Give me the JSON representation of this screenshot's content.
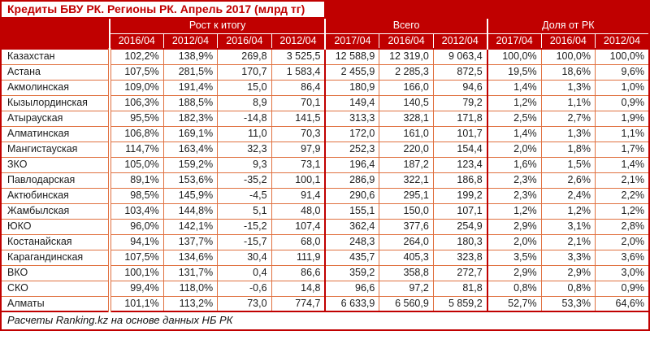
{
  "title": "Кредиты БВУ РК. Регионы РК. Апрель 2017 (млрд тг)",
  "footer": "Расчеты Ranking.kz на основе данных НБ РК",
  "colors": {
    "header_bg": "#C00000",
    "header_text": "#FFFFFF",
    "title_text": "#C00000",
    "cell_border": "#E07140",
    "strong_border": "#C00000"
  },
  "chart_data": {
    "type": "table",
    "title": "Кредиты БВУ РК. Регионы РК. Апрель 2017 (млрд тг)",
    "groups": [
      {
        "label": "Рост к итогу",
        "cols": 4
      },
      {
        "label": "Всего",
        "cols": 3
      },
      {
        "label": "Доля от РК",
        "cols": 3
      }
    ],
    "sub_headers": [
      "2016/04",
      "2012/04",
      "2016/04",
      "2012/04",
      "2017/04",
      "2016/04",
      "2012/04",
      "2017/04",
      "2016/04",
      "2012/04"
    ],
    "rows": [
      {
        "region": "Казахстан",
        "values": [
          "102,2%",
          "138,9%",
          "269,8",
          "3 525,5",
          "12 588,9",
          "12 319,0",
          "9 063,4",
          "100,0%",
          "100,0%",
          "100,0%"
        ]
      },
      {
        "region": "Астана",
        "values": [
          "107,5%",
          "281,5%",
          "170,7",
          "1 583,4",
          "2 455,9",
          "2 285,3",
          "872,5",
          "19,5%",
          "18,6%",
          "9,6%"
        ]
      },
      {
        "region": "Акмолинская",
        "values": [
          "109,0%",
          "191,4%",
          "15,0",
          "86,4",
          "180,9",
          "166,0",
          "94,6",
          "1,4%",
          "1,3%",
          "1,0%"
        ]
      },
      {
        "region": "Кызылординская",
        "values": [
          "106,3%",
          "188,5%",
          "8,9",
          "70,1",
          "149,4",
          "140,5",
          "79,2",
          "1,2%",
          "1,1%",
          "0,9%"
        ]
      },
      {
        "region": "Атырауская",
        "values": [
          "95,5%",
          "182,3%",
          "-14,8",
          "141,5",
          "313,3",
          "328,1",
          "171,8",
          "2,5%",
          "2,7%",
          "1,9%"
        ]
      },
      {
        "region": "Алматинская",
        "values": [
          "106,8%",
          "169,1%",
          "11,0",
          "70,3",
          "172,0",
          "161,0",
          "101,7",
          "1,4%",
          "1,3%",
          "1,1%"
        ]
      },
      {
        "region": "Мангистауская",
        "values": [
          "114,7%",
          "163,4%",
          "32,3",
          "97,9",
          "252,3",
          "220,0",
          "154,4",
          "2,0%",
          "1,8%",
          "1,7%"
        ]
      },
      {
        "region": "ЗКО",
        "values": [
          "105,0%",
          "159,2%",
          "9,3",
          "73,1",
          "196,4",
          "187,2",
          "123,4",
          "1,6%",
          "1,5%",
          "1,4%"
        ]
      },
      {
        "region": "Павлодарская",
        "values": [
          "89,1%",
          "153,6%",
          "-35,2",
          "100,1",
          "286,9",
          "322,1",
          "186,8",
          "2,3%",
          "2,6%",
          "2,1%"
        ]
      },
      {
        "region": "Актюбинская",
        "values": [
          "98,5%",
          "145,9%",
          "-4,5",
          "91,4",
          "290,6",
          "295,1",
          "199,2",
          "2,3%",
          "2,4%",
          "2,2%"
        ]
      },
      {
        "region": "Жамбылская",
        "values": [
          "103,4%",
          "144,8%",
          "5,1",
          "48,0",
          "155,1",
          "150,0",
          "107,1",
          "1,2%",
          "1,2%",
          "1,2%"
        ]
      },
      {
        "region": "ЮКО",
        "values": [
          "96,0%",
          "142,1%",
          "-15,2",
          "107,4",
          "362,4",
          "377,6",
          "254,9",
          "2,9%",
          "3,1%",
          "2,8%"
        ]
      },
      {
        "region": "Костанайская",
        "values": [
          "94,1%",
          "137,7%",
          "-15,7",
          "68,0",
          "248,3",
          "264,0",
          "180,3",
          "2,0%",
          "2,1%",
          "2,0%"
        ]
      },
      {
        "region": "Карагандинская",
        "values": [
          "107,5%",
          "134,6%",
          "30,4",
          "111,9",
          "435,7",
          "405,3",
          "323,8",
          "3,5%",
          "3,3%",
          "3,6%"
        ]
      },
      {
        "region": "ВКО",
        "values": [
          "100,1%",
          "131,7%",
          "0,4",
          "86,6",
          "359,2",
          "358,8",
          "272,7",
          "2,9%",
          "2,9%",
          "3,0%"
        ]
      },
      {
        "region": "СКО",
        "values": [
          "99,4%",
          "118,0%",
          "-0,6",
          "14,8",
          "96,6",
          "97,2",
          "81,8",
          "0,8%",
          "0,8%",
          "0,9%"
        ]
      },
      {
        "region": "Алматы",
        "values": [
          "101,1%",
          "113,2%",
          "73,0",
          "774,7",
          "6 633,9",
          "6 560,9",
          "5 859,2",
          "52,7%",
          "53,3%",
          "64,6%"
        ]
      }
    ]
  }
}
